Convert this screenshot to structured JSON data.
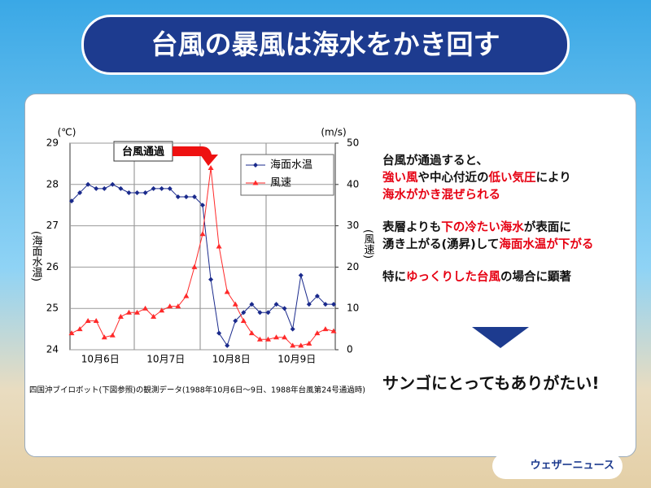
{
  "header": {
    "title": "台風の暴風は海水をかき回す"
  },
  "chart_data": {
    "type": "line",
    "categories": [
      null,
      null,
      null,
      null,
      "10月6日",
      null,
      null,
      null,
      null,
      null,
      null,
      null,
      "10月7日",
      null,
      null,
      null,
      null,
      null,
      null,
      null,
      "10月8日",
      null,
      null,
      null,
      null,
      null,
      null,
      null,
      "10月9日",
      null,
      null,
      null,
      null
    ],
    "series": [
      {
        "name": "海面水温",
        "color": "#1a2a8c",
        "marker": "diamond",
        "values": [
          27.6,
          27.8,
          28.0,
          27.9,
          27.9,
          28.0,
          27.9,
          27.8,
          27.8,
          27.8,
          27.9,
          27.9,
          27.9,
          27.7,
          27.7,
          27.7,
          27.5,
          25.7,
          24.4,
          24.1,
          24.7,
          24.9,
          25.1,
          24.9,
          24.9,
          25.1,
          25.0,
          24.5,
          25.8,
          25.1,
          25.3,
          25.1,
          25.1
        ]
      },
      {
        "name": "風速",
        "color": "#ff2a2a",
        "marker": "triangle",
        "axis": "y2",
        "values": [
          4,
          5,
          7,
          7,
          3,
          3.5,
          8,
          9,
          9,
          10,
          8,
          9.5,
          10.5,
          10.5,
          13,
          20,
          28,
          44,
          25,
          14,
          11,
          7,
          4,
          2.5,
          2.5,
          3,
          3,
          1,
          1,
          1.5,
          4,
          5,
          4.5
        ]
      }
    ],
    "ylim": [
      24,
      29
    ],
    "yticks": [
      24,
      25,
      26,
      27,
      28,
      29
    ],
    "y2lim": [
      0,
      50
    ],
    "y2ticks": [
      0,
      10,
      20,
      30,
      40,
      50
    ],
    "y_unit": "(℃)",
    "y2_unit": "(m/s)",
    "y_label": "(海面水温)",
    "y2_label": "(風速)",
    "annotation": "台風通過",
    "grid": true,
    "legend": "upper right",
    "source": "四国沖ブイロボット(下図参照)の観測データ(1988年10月6日〜9日、1988年台風第24号通過時)"
  },
  "explanation": {
    "paragraphs": [
      [
        [
          {
            "text": "台風が通過すると、",
            "color": "#111111"
          }
        ],
        [
          {
            "text": "強い風",
            "color": "#e60012"
          },
          {
            "text": "や中心付近の",
            "color": "#111111"
          },
          {
            "text": "低い気圧",
            "color": "#e60012"
          },
          {
            "text": "により",
            "color": "#111111"
          }
        ],
        [
          {
            "text": "海水がかき混ぜられる",
            "color": "#e60012"
          }
        ]
      ],
      [
        [
          {
            "text": "表層よりも",
            "color": "#111111"
          },
          {
            "text": "下の冷たい海水",
            "color": "#e60012"
          },
          {
            "text": "が表面に",
            "color": "#111111"
          }
        ],
        [
          {
            "text": "湧き上がる(湧昇)して",
            "color": "#111111"
          },
          {
            "text": "海面水温が下がる",
            "color": "#e60012"
          }
        ]
      ],
      [
        [
          {
            "text": "特に",
            "color": "#111111"
          },
          {
            "text": "ゆっくりした台風",
            "color": "#e60012"
          },
          {
            "text": "の場合に顕著",
            "color": "#111111"
          }
        ]
      ]
    ],
    "conclusion": "サンゴにとってもありがたい!"
  },
  "footer": {
    "brand": "ウェザーニュース"
  }
}
